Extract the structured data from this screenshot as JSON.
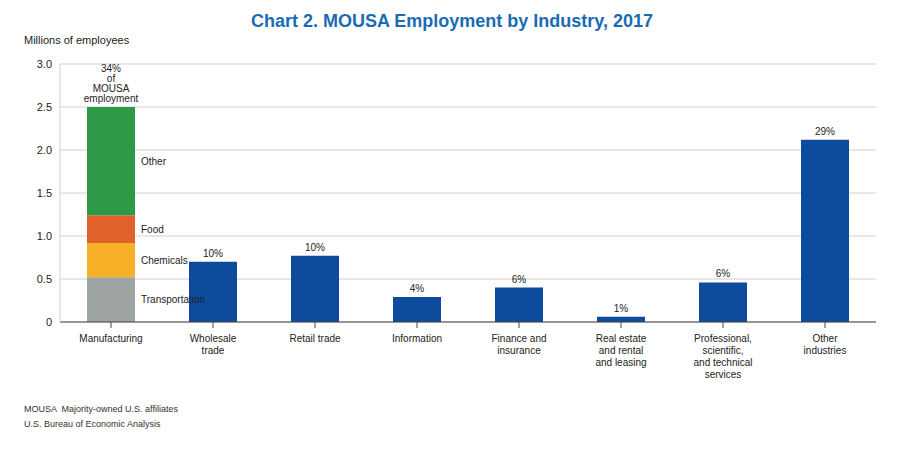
{
  "chart_data": {
    "type": "bar",
    "title": "Chart 2. MOUSA Employment by Industry, 2017",
    "y_label": "Millions of employees",
    "categories": [
      "Manufacturing",
      "Wholesale trade",
      "Retail trade",
      "Information",
      "Finance and insurance",
      "Real estate and rental and leasing",
      "Professional, scientific, and technical services",
      "Other industries"
    ],
    "series": [
      {
        "name": "Transportation",
        "color": "#9ea3a3",
        "values": [
          0.52,
          null,
          null,
          null,
          null,
          null,
          null,
          null
        ]
      },
      {
        "name": "Chemicals",
        "color": "#f5b025",
        "values": [
          0.4,
          null,
          null,
          null,
          null,
          null,
          null,
          null
        ]
      },
      {
        "name": "Food",
        "color": "#e0622a",
        "values": [
          0.32,
          null,
          null,
          null,
          null,
          null,
          null,
          null
        ]
      },
      {
        "name": "Other",
        "color": "#2e9a47",
        "values": [
          1.26,
          null,
          null,
          null,
          null,
          null,
          null,
          null
        ]
      },
      {
        "color": "#0d4c9c",
        "values": [
          null,
          0.7,
          0.77,
          0.29,
          0.4,
          0.06,
          0.46,
          2.12
        ]
      }
    ],
    "share_labels": [
      "34% of MOUSA employment",
      "10%",
      "10%",
      "4%",
      "6%",
      "1%",
      "6%",
      "29%"
    ],
    "stacked": true,
    "grid": true,
    "ylim": [
      0,
      3
    ],
    "yticks": [
      0,
      0.5,
      {
        "value": 1,
        "label": "1.0"
      },
      {
        "value": 1.5,
        "label": "1.5"
      },
      {
        "value": 2,
        "label": "2.0"
      },
      {
        "value": 2.5,
        "label": "2.5"
      },
      {
        "value": 3,
        "label": "3.0"
      }
    ],
    "notes": [
      "MOUSA  Majority-owned U.S. affiliates",
      "U.S. Bureau of Economic Analysis"
    ]
  }
}
